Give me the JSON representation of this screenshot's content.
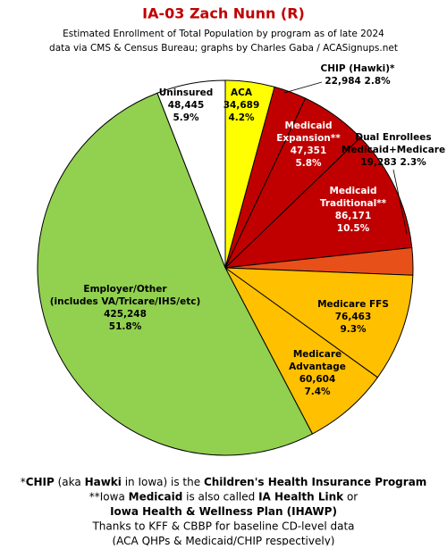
{
  "chart_data": {
    "type": "pie",
    "title": "IA-03 Zach Nunn (R)",
    "subtitle": [
      "Estimated Enrollment of Total Population by program as of late 2024",
      "data via CMS & Census Bureau; graphs by Charles Gaba / ACASignups.net"
    ],
    "categories": [
      [
        "ACA"
      ],
      [
        "CHIP (Hawki)*"
      ],
      [
        "Medicaid",
        "Expansion**"
      ],
      [
        "Medicaid",
        "Traditional**"
      ],
      [
        "Dual Enrollees",
        "Medicaid+Medicare"
      ],
      [
        "Medicare FFS"
      ],
      [
        "Medicare",
        "Advantage"
      ],
      [
        "Employer/Other",
        "(includes VA/Tricare/IHS/etc)"
      ],
      [
        "Uninsured"
      ]
    ],
    "values": [
      34689,
      22984,
      47351,
      86171,
      19283,
      76463,
      60604,
      425248,
      48445
    ],
    "value_labels": [
      "34,689",
      "22,984",
      "47,351",
      "86,171",
      "19,283",
      "76,463",
      "60,604",
      "425,248",
      "48,445"
    ],
    "percentages": [
      4.2,
      2.8,
      5.8,
      10.5,
      2.3,
      9.3,
      7.4,
      51.8,
      5.9
    ],
    "percentage_labels": [
      "4.2%",
      "2.8%",
      "5.8%",
      "10.5%",
      "2.3%",
      "9.3%",
      "7.4%",
      "51.8%",
      "5.9%"
    ],
    "colors": [
      "#ffff00",
      "#c00000",
      "#c00000",
      "#c00000",
      "#e8501a",
      "#ffc000",
      "#ffc000",
      "#92d050",
      "#ffffff"
    ],
    "notes": [
      [
        {
          "text": "*",
          "bold": false
        },
        {
          "text": "CHIP",
          "bold": true
        },
        {
          "text": " (aka ",
          "bold": false
        },
        {
          "text": "Hawki",
          "bold": true
        },
        {
          "text": " in Iowa) is the ",
          "bold": false
        },
        {
          "text": "Children's Health Insurance Program",
          "bold": true
        }
      ],
      [
        {
          "text": "**Iowa ",
          "bold": false
        },
        {
          "text": "Medicaid",
          "bold": true
        },
        {
          "text": " is also called ",
          "bold": false
        },
        {
          "text": "IA Health Link",
          "bold": true
        },
        {
          "text": " or",
          "bold": false
        }
      ],
      [
        {
          "text": "Iowa Health & Wellness Plan (IHAWP)",
          "bold": true
        }
      ],
      [
        {
          "text": "Thanks to KFF & CBBP for baseline CD-level data",
          "bold": false
        }
      ],
      [
        {
          "text": "(ACA QHPs & Medicaid/CHIP respectively)",
          "bold": false
        }
      ]
    ]
  }
}
